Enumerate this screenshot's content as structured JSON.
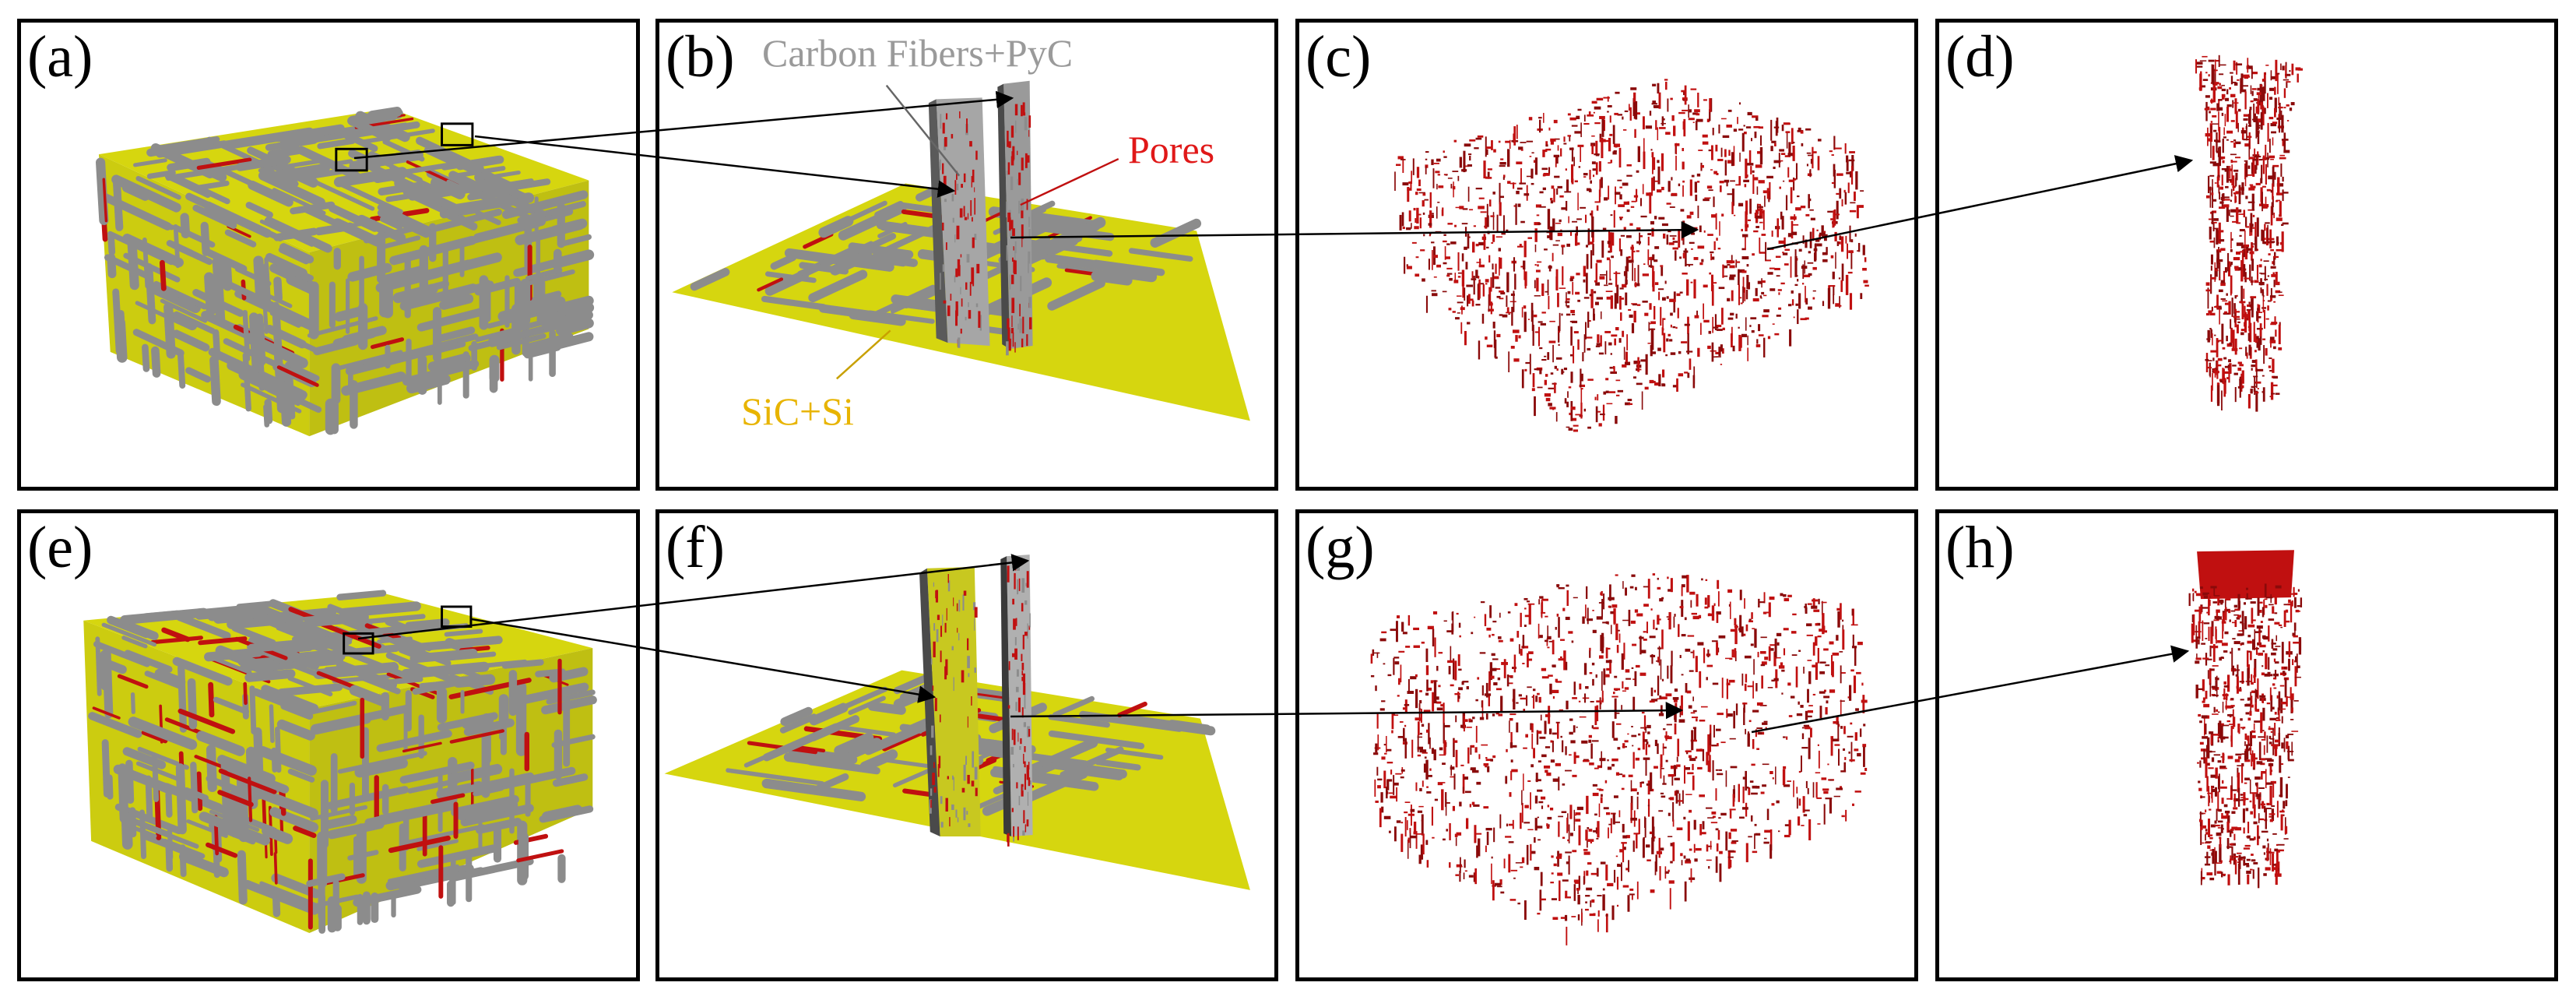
{
  "panels": [
    {
      "id": "a",
      "label": "(a)"
    },
    {
      "id": "b",
      "label": "(b)"
    },
    {
      "id": "c",
      "label": "(c)"
    },
    {
      "id": "d",
      "label": "(d)"
    },
    {
      "id": "e",
      "label": "(e)"
    },
    {
      "id": "f",
      "label": "(f)"
    },
    {
      "id": "g",
      "label": "(g)"
    },
    {
      "id": "h",
      "label": "(h)"
    }
  ],
  "annotations": {
    "fibers": "Carbon Fibers+PyC",
    "pores": "Pores",
    "matrix": "SiC+Si"
  },
  "colors": {
    "fibers": "#8c8c8c",
    "matrix": "#d6d60f",
    "pores": "#c01010",
    "pores_dark": "#8a0a0a",
    "label_fibers": "#9a9a9a",
    "label_pores": "#e01818",
    "label_matrix": "#e8b400"
  }
}
